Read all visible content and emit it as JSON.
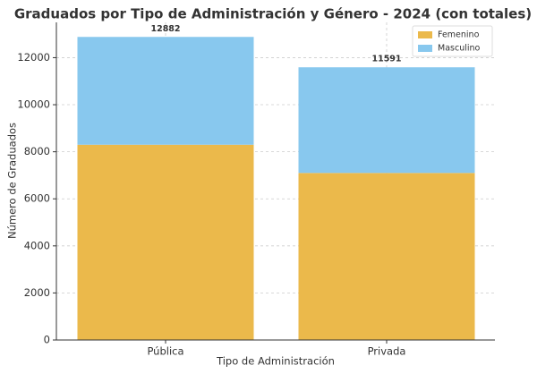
{
  "chart_data": {
    "type": "stacked-bar",
    "title": "Graduados por Tipo de Administración y Género - 2024 (con totales)",
    "xlabel": "Tipo de Administración",
    "ylabel": "Número de Graduados",
    "categories": [
      "Pública",
      "Privada"
    ],
    "series": [
      {
        "name": "Femenino",
        "color": "#ebb94b",
        "values": [
          8300,
          7100
        ]
      },
      {
        "name": "Masculino",
        "color": "#88c8ee",
        "values": [
          4582,
          4491
        ]
      }
    ],
    "totals": [
      12882,
      11591
    ],
    "ylim": [
      0,
      13500
    ],
    "yticks": [
      0,
      2000,
      4000,
      6000,
      8000,
      10000,
      12000
    ],
    "grid": true,
    "legend": "upper right"
  }
}
